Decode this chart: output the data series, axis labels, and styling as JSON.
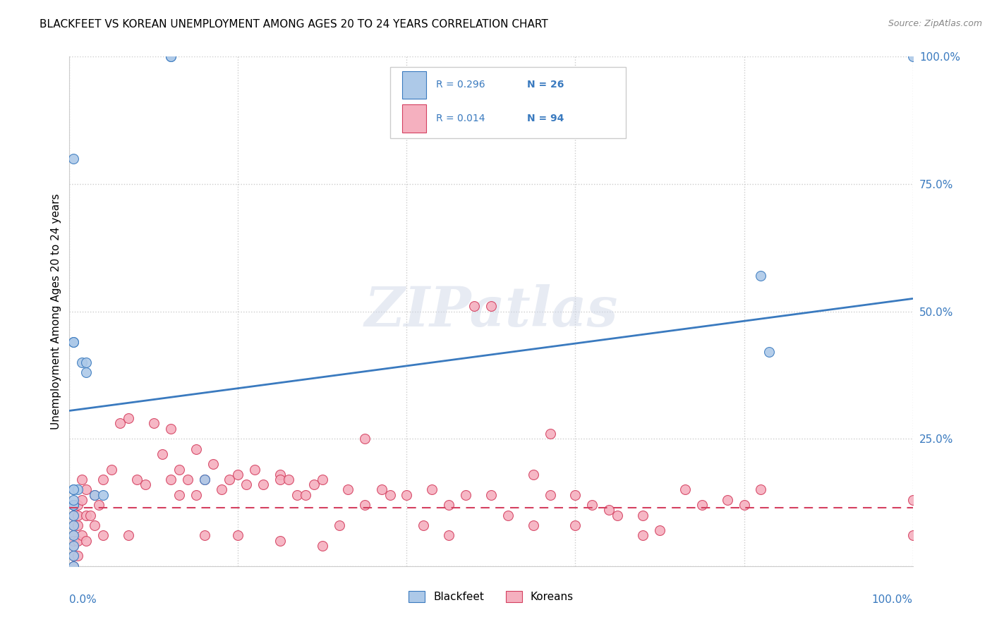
{
  "title": "BLACKFEET VS KOREAN UNEMPLOYMENT AMONG AGES 20 TO 24 YEARS CORRELATION CHART",
  "source": "Source: ZipAtlas.com",
  "ylabel": "Unemployment Among Ages 20 to 24 years",
  "watermark": "ZIPatlas",
  "xlim": [
    0,
    1
  ],
  "ylim": [
    0,
    1
  ],
  "yticks": [
    0,
    0.25,
    0.5,
    0.75,
    1.0
  ],
  "ytick_labels": [
    "",
    "25.0%",
    "50.0%",
    "75.0%",
    "100.0%"
  ],
  "legend_r_blackfeet": "R = 0.296",
  "legend_n_blackfeet": "N = 26",
  "legend_r_korean": "R = 0.014",
  "legend_n_korean": "N = 94",
  "blackfeet_color": "#adc9e8",
  "korean_color": "#f5b0bf",
  "trend_blackfeet_color": "#3a7abf",
  "trend_korean_color": "#d44060",
  "blackfeet_x": [
    0.005,
    0.12,
    0.12,
    0.005,
    0.005,
    0.015,
    0.02,
    0.02,
    0.03,
    0.04,
    0.16,
    0.82,
    1.0,
    0.83,
    0.005,
    0.01,
    0.005,
    0.005,
    0.005,
    0.005,
    0.005,
    0.005,
    0.005,
    0.005,
    0.005,
    0.005
  ],
  "blackfeet_y": [
    0.8,
    1.0,
    1.0,
    0.44,
    0.44,
    0.4,
    0.4,
    0.38,
    0.14,
    0.14,
    0.17,
    0.57,
    1.0,
    0.42,
    0.15,
    0.15,
    0.12,
    0.12,
    0.1,
    0.08,
    0.06,
    0.04,
    0.02,
    0.0,
    0.15,
    0.13
  ],
  "korean_x": [
    0.005,
    0.005,
    0.005,
    0.005,
    0.005,
    0.005,
    0.005,
    0.005,
    0.01,
    0.01,
    0.01,
    0.01,
    0.01,
    0.015,
    0.015,
    0.015,
    0.02,
    0.02,
    0.02,
    0.025,
    0.03,
    0.03,
    0.035,
    0.04,
    0.04,
    0.05,
    0.06,
    0.07,
    0.07,
    0.08,
    0.09,
    0.1,
    0.11,
    0.12,
    0.12,
    0.13,
    0.13,
    0.14,
    0.15,
    0.15,
    0.16,
    0.16,
    0.17,
    0.18,
    0.19,
    0.2,
    0.2,
    0.21,
    0.22,
    0.23,
    0.25,
    0.25,
    0.25,
    0.26,
    0.27,
    0.28,
    0.29,
    0.3,
    0.3,
    0.32,
    0.33,
    0.35,
    0.35,
    0.37,
    0.38,
    0.4,
    0.42,
    0.43,
    0.45,
    0.45,
    0.47,
    0.48,
    0.5,
    0.5,
    0.52,
    0.55,
    0.55,
    0.57,
    0.57,
    0.6,
    0.6,
    0.62,
    0.64,
    0.65,
    0.68,
    0.68,
    0.7,
    0.73,
    0.75,
    0.78,
    0.8,
    0.82,
    1.0,
    1.0
  ],
  "korean_y": [
    0.12,
    0.1,
    0.08,
    0.06,
    0.04,
    0.02,
    0.0,
    0.05,
    0.12,
    0.1,
    0.08,
    0.05,
    0.02,
    0.17,
    0.13,
    0.06,
    0.15,
    0.1,
    0.05,
    0.1,
    0.14,
    0.08,
    0.12,
    0.17,
    0.06,
    0.19,
    0.28,
    0.29,
    0.06,
    0.17,
    0.16,
    0.28,
    0.22,
    0.27,
    0.17,
    0.19,
    0.14,
    0.17,
    0.23,
    0.14,
    0.17,
    0.06,
    0.2,
    0.15,
    0.17,
    0.18,
    0.06,
    0.16,
    0.19,
    0.16,
    0.18,
    0.05,
    0.17,
    0.17,
    0.14,
    0.14,
    0.16,
    0.17,
    0.04,
    0.08,
    0.15,
    0.25,
    0.12,
    0.15,
    0.14,
    0.14,
    0.08,
    0.15,
    0.12,
    0.06,
    0.14,
    0.51,
    0.51,
    0.14,
    0.1,
    0.18,
    0.08,
    0.26,
    0.14,
    0.14,
    0.08,
    0.12,
    0.11,
    0.1,
    0.1,
    0.06,
    0.07,
    0.15,
    0.12,
    0.13,
    0.12,
    0.15,
    0.06,
    0.13
  ],
  "trend_bf_x0": 0.0,
  "trend_bf_x1": 1.0,
  "trend_bf_y0": 0.305,
  "trend_bf_y1": 0.525,
  "trend_k_x0": 0.0,
  "trend_k_x1": 1.0,
  "trend_k_y0": 0.115,
  "trend_k_y1": 0.115,
  "marker_size": 100,
  "axis_color": "#3a7abf",
  "grid_color": "#cccccc",
  "grid_linestyle": ":"
}
